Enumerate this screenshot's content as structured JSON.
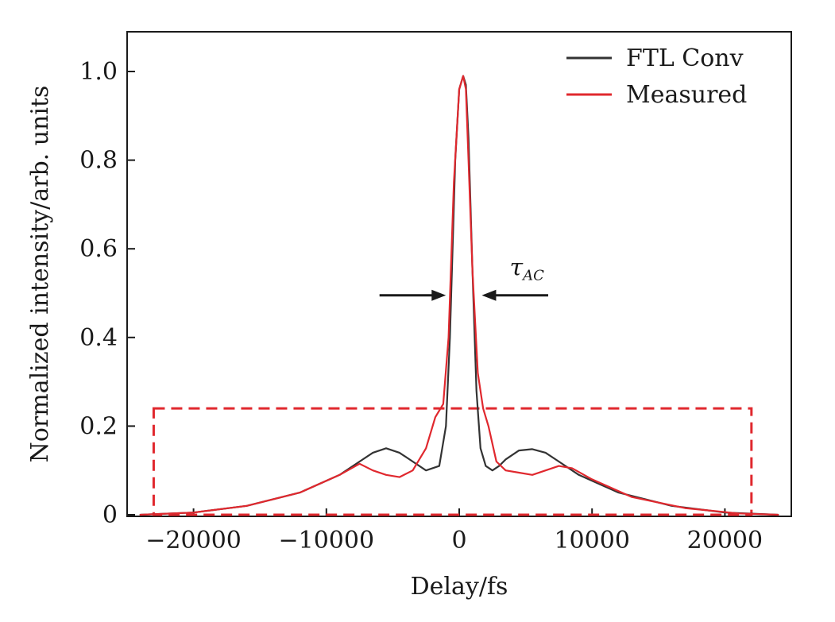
{
  "chart_data": {
    "type": "line",
    "xlabel": "Delay/fs",
    "ylabel": "Normalized intensity/arb. units",
    "xlim": [
      -25000,
      25000
    ],
    "ylim": [
      0,
      1.1
    ],
    "xticks": [
      -20000,
      -10000,
      0,
      10000,
      20000
    ],
    "xtick_labels": [
      "−20000",
      "−10000",
      "0",
      "10000",
      "20000"
    ],
    "yticks": [
      0,
      0.2,
      0.4,
      0.6,
      0.8,
      1.0
    ],
    "ytick_labels": [
      "0",
      "0.2",
      "0.4",
      "0.6",
      "0.8",
      "1.0"
    ],
    "legend_position": "top-right",
    "colors": {
      "ftl": "#333333",
      "measured": "#e0282e",
      "highlight": "#e0282e"
    },
    "series": [
      {
        "name": "FTL Conv",
        "x": [
          -24000,
          -20000,
          -16000,
          -12000,
          -9000,
          -7500,
          -6500,
          -5500,
          -4500,
          -3500,
          -2500,
          -1500,
          -1000,
          -700,
          -300,
          0,
          300,
          500,
          700,
          1000,
          1300,
          1600,
          2000,
          2500,
          3000,
          3500,
          4500,
          5500,
          6500,
          7500,
          9000,
          12000,
          16000,
          20000,
          24000
        ],
        "y": [
          0.0,
          0.005,
          0.02,
          0.05,
          0.09,
          0.12,
          0.14,
          0.15,
          0.14,
          0.12,
          0.1,
          0.11,
          0.2,
          0.4,
          0.8,
          0.96,
          0.99,
          0.97,
          0.85,
          0.55,
          0.28,
          0.15,
          0.11,
          0.1,
          0.11,
          0.125,
          0.145,
          0.148,
          0.14,
          0.12,
          0.09,
          0.05,
          0.02,
          0.005,
          0.0
        ]
      },
      {
        "name": "Measured",
        "x": [
          -24000,
          -20000,
          -16000,
          -12000,
          -9000,
          -7500,
          -6500,
          -5500,
          -4500,
          -3500,
          -2500,
          -1800,
          -1200,
          -800,
          -400,
          0,
          300,
          500,
          700,
          1000,
          1400,
          1800,
          2200,
          2800,
          3500,
          4500,
          5500,
          6500,
          7500,
          8500,
          10000,
          13000,
          17000,
          21000,
          24000
        ],
        "y": [
          0.0,
          0.005,
          0.02,
          0.05,
          0.09,
          0.115,
          0.1,
          0.09,
          0.085,
          0.1,
          0.15,
          0.22,
          0.25,
          0.4,
          0.75,
          0.96,
          0.99,
          0.96,
          0.8,
          0.55,
          0.32,
          0.24,
          0.2,
          0.12,
          0.1,
          0.095,
          0.09,
          0.1,
          0.11,
          0.105,
          0.08,
          0.04,
          0.015,
          0.003,
          0.0
        ]
      }
    ],
    "annotations": [
      {
        "text": "τ",
        "subscript": "AC",
        "x": 3800,
        "y": 0.54
      }
    ],
    "fwhm_arrows": {
      "x_left": -1000,
      "x_right": 1700,
      "y": 0.495,
      "length": 5000
    },
    "highlight_box": {
      "x0": -23000,
      "x1": 22000,
      "y0": 0.0,
      "y1": 0.24,
      "style": "dashed"
    }
  }
}
